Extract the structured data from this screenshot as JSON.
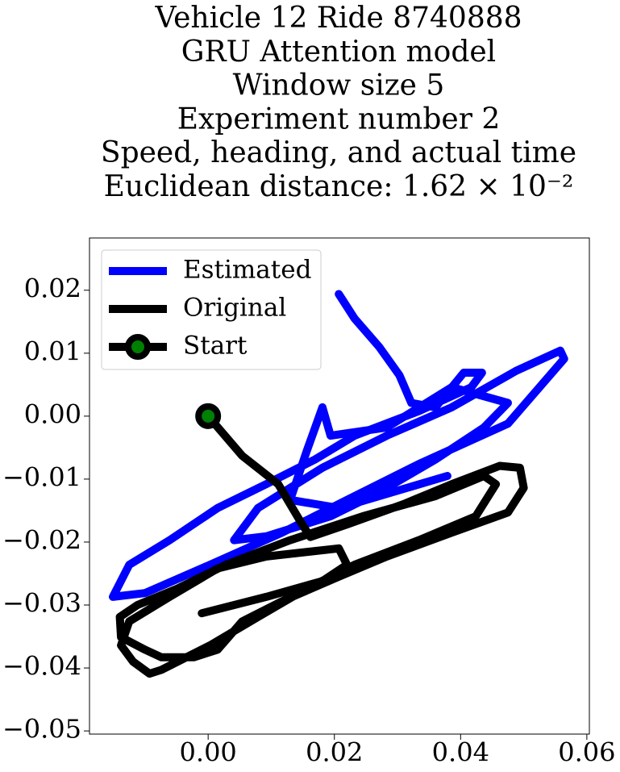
{
  "chart_data": {
    "type": "line",
    "title": [
      "Vehicle 12 Ride 8740888",
      "GRU Attention model",
      "Window size 5",
      "Experiment number 2",
      "Speed, heading, and actual time",
      "Euclidean distance: 1.62 × 10⁻²"
    ],
    "xlim": [
      -0.0188,
      0.0604
    ],
    "ylim": [
      -0.0505,
      0.0283
    ],
    "xticks": [
      {
        "value": 0,
        "label": "0.00"
      },
      0.02,
      0.04,
      0.06
    ],
    "yticks": [
      0.02,
      0.01,
      {
        "value": 0,
        "label": "0.00"
      },
      {
        "value": -0.01,
        "label": "−0.01"
      },
      {
        "value": -0.02,
        "label": "−0.02"
      },
      {
        "value": -0.03,
        "label": "−0.03"
      },
      {
        "value": -0.04,
        "label": "−0.04"
      },
      {
        "value": -0.05,
        "label": "−0.05"
      }
    ],
    "grid": false,
    "legend": "upper left",
    "series": [
      {
        "name": "Estimated",
        "color": "#0000ff",
        "x": [
          0.0207,
          0.0232,
          0.0271,
          0.0303,
          0.0322,
          0.036,
          0.0405,
          0.0434,
          0.0417,
          0.0334,
          0.0232,
          0.0169,
          0.0092,
          0.0015,
          -0.0061,
          -0.0125,
          -0.0151,
          -0.01,
          0.0003,
          0.0117,
          0.022,
          0.0334,
          0.0475,
          0.0564,
          0.0558,
          0.0488,
          0.0386,
          0.0283,
          0.0181,
          0.0079,
          0.0041,
          0.0092,
          0.0194,
          0.0271,
          0.036,
          0.0437,
          0.0475,
          0.0386,
          0.0283,
          0.0194,
          0.0181,
          0.0156,
          0.013,
          0.0207,
          0.0379
        ],
        "values": [
          0.0194,
          0.0155,
          0.011,
          0.0065,
          0.0021,
          0.0014,
          0.0069,
          0.0069,
          0.0046,
          0.0008,
          -0.0031,
          -0.0069,
          -0.0108,
          -0.0146,
          -0.0197,
          -0.0236,
          -0.0287,
          -0.0281,
          -0.0236,
          -0.0185,
          -0.0133,
          -0.0076,
          -0.0012,
          0.0091,
          0.0104,
          0.0072,
          0.0014,
          -0.0031,
          -0.0082,
          -0.0146,
          -0.0197,
          -0.0191,
          -0.0159,
          -0.0121,
          -0.0069,
          -0.0018,
          0.0021,
          0.0046,
          -0.0018,
          -0.0031,
          0.0014,
          -0.0056,
          -0.0133,
          -0.0146,
          -0.0095
        ]
      },
      {
        "name": "Original",
        "color": "#000000",
        "x": [
          0.0,
          0.0054,
          0.0111,
          0.013,
          0.0149,
          0.0162,
          0.022,
          0.0309,
          0.0386,
          0.0462,
          0.0494,
          0.05,
          0.0475,
          0.0386,
          0.0283,
          0.0207,
          0.0117,
          0.0054,
          0.0015,
          -0.0023,
          -0.0074,
          -0.01,
          -0.0138,
          -0.014,
          -0.0112,
          -0.0049,
          0.0028,
          0.013,
          0.0245,
          0.036,
          0.0437,
          0.0456,
          0.0424,
          0.0334,
          0.0232,
          0.0156,
          0.0079,
          0.0003,
          -0.0074,
          -0.0093,
          -0.0119,
          -0.0138,
          -0.0125,
          -0.0061,
          0.0015,
          0.0092,
          0.0207,
          0.022,
          0.0181,
          0.0092,
          -0.001
        ],
        "values": [
          0.0,
          -0.0063,
          -0.0108,
          -0.014,
          -0.0172,
          -0.0192,
          -0.0172,
          -0.014,
          -0.0108,
          -0.0079,
          -0.0082,
          -0.0114,
          -0.0153,
          -0.0185,
          -0.0223,
          -0.0255,
          -0.0294,
          -0.0326,
          -0.0371,
          -0.0383,
          -0.0383,
          -0.0371,
          -0.0351,
          -0.0319,
          -0.03,
          -0.0274,
          -0.0236,
          -0.0197,
          -0.0159,
          -0.0127,
          -0.0095,
          -0.0108,
          -0.0159,
          -0.0197,
          -0.0236,
          -0.0274,
          -0.0319,
          -0.0364,
          -0.0403,
          -0.0409,
          -0.039,
          -0.0364,
          -0.0326,
          -0.0287,
          -0.0242,
          -0.0223,
          -0.021,
          -0.0236,
          -0.0262,
          -0.0287,
          -0.0313
        ]
      },
      {
        "name": "Start",
        "color": "#000000",
        "marker_color": "#008000",
        "x": [
          0.0
        ],
        "values": [
          0.0
        ]
      }
    ]
  }
}
